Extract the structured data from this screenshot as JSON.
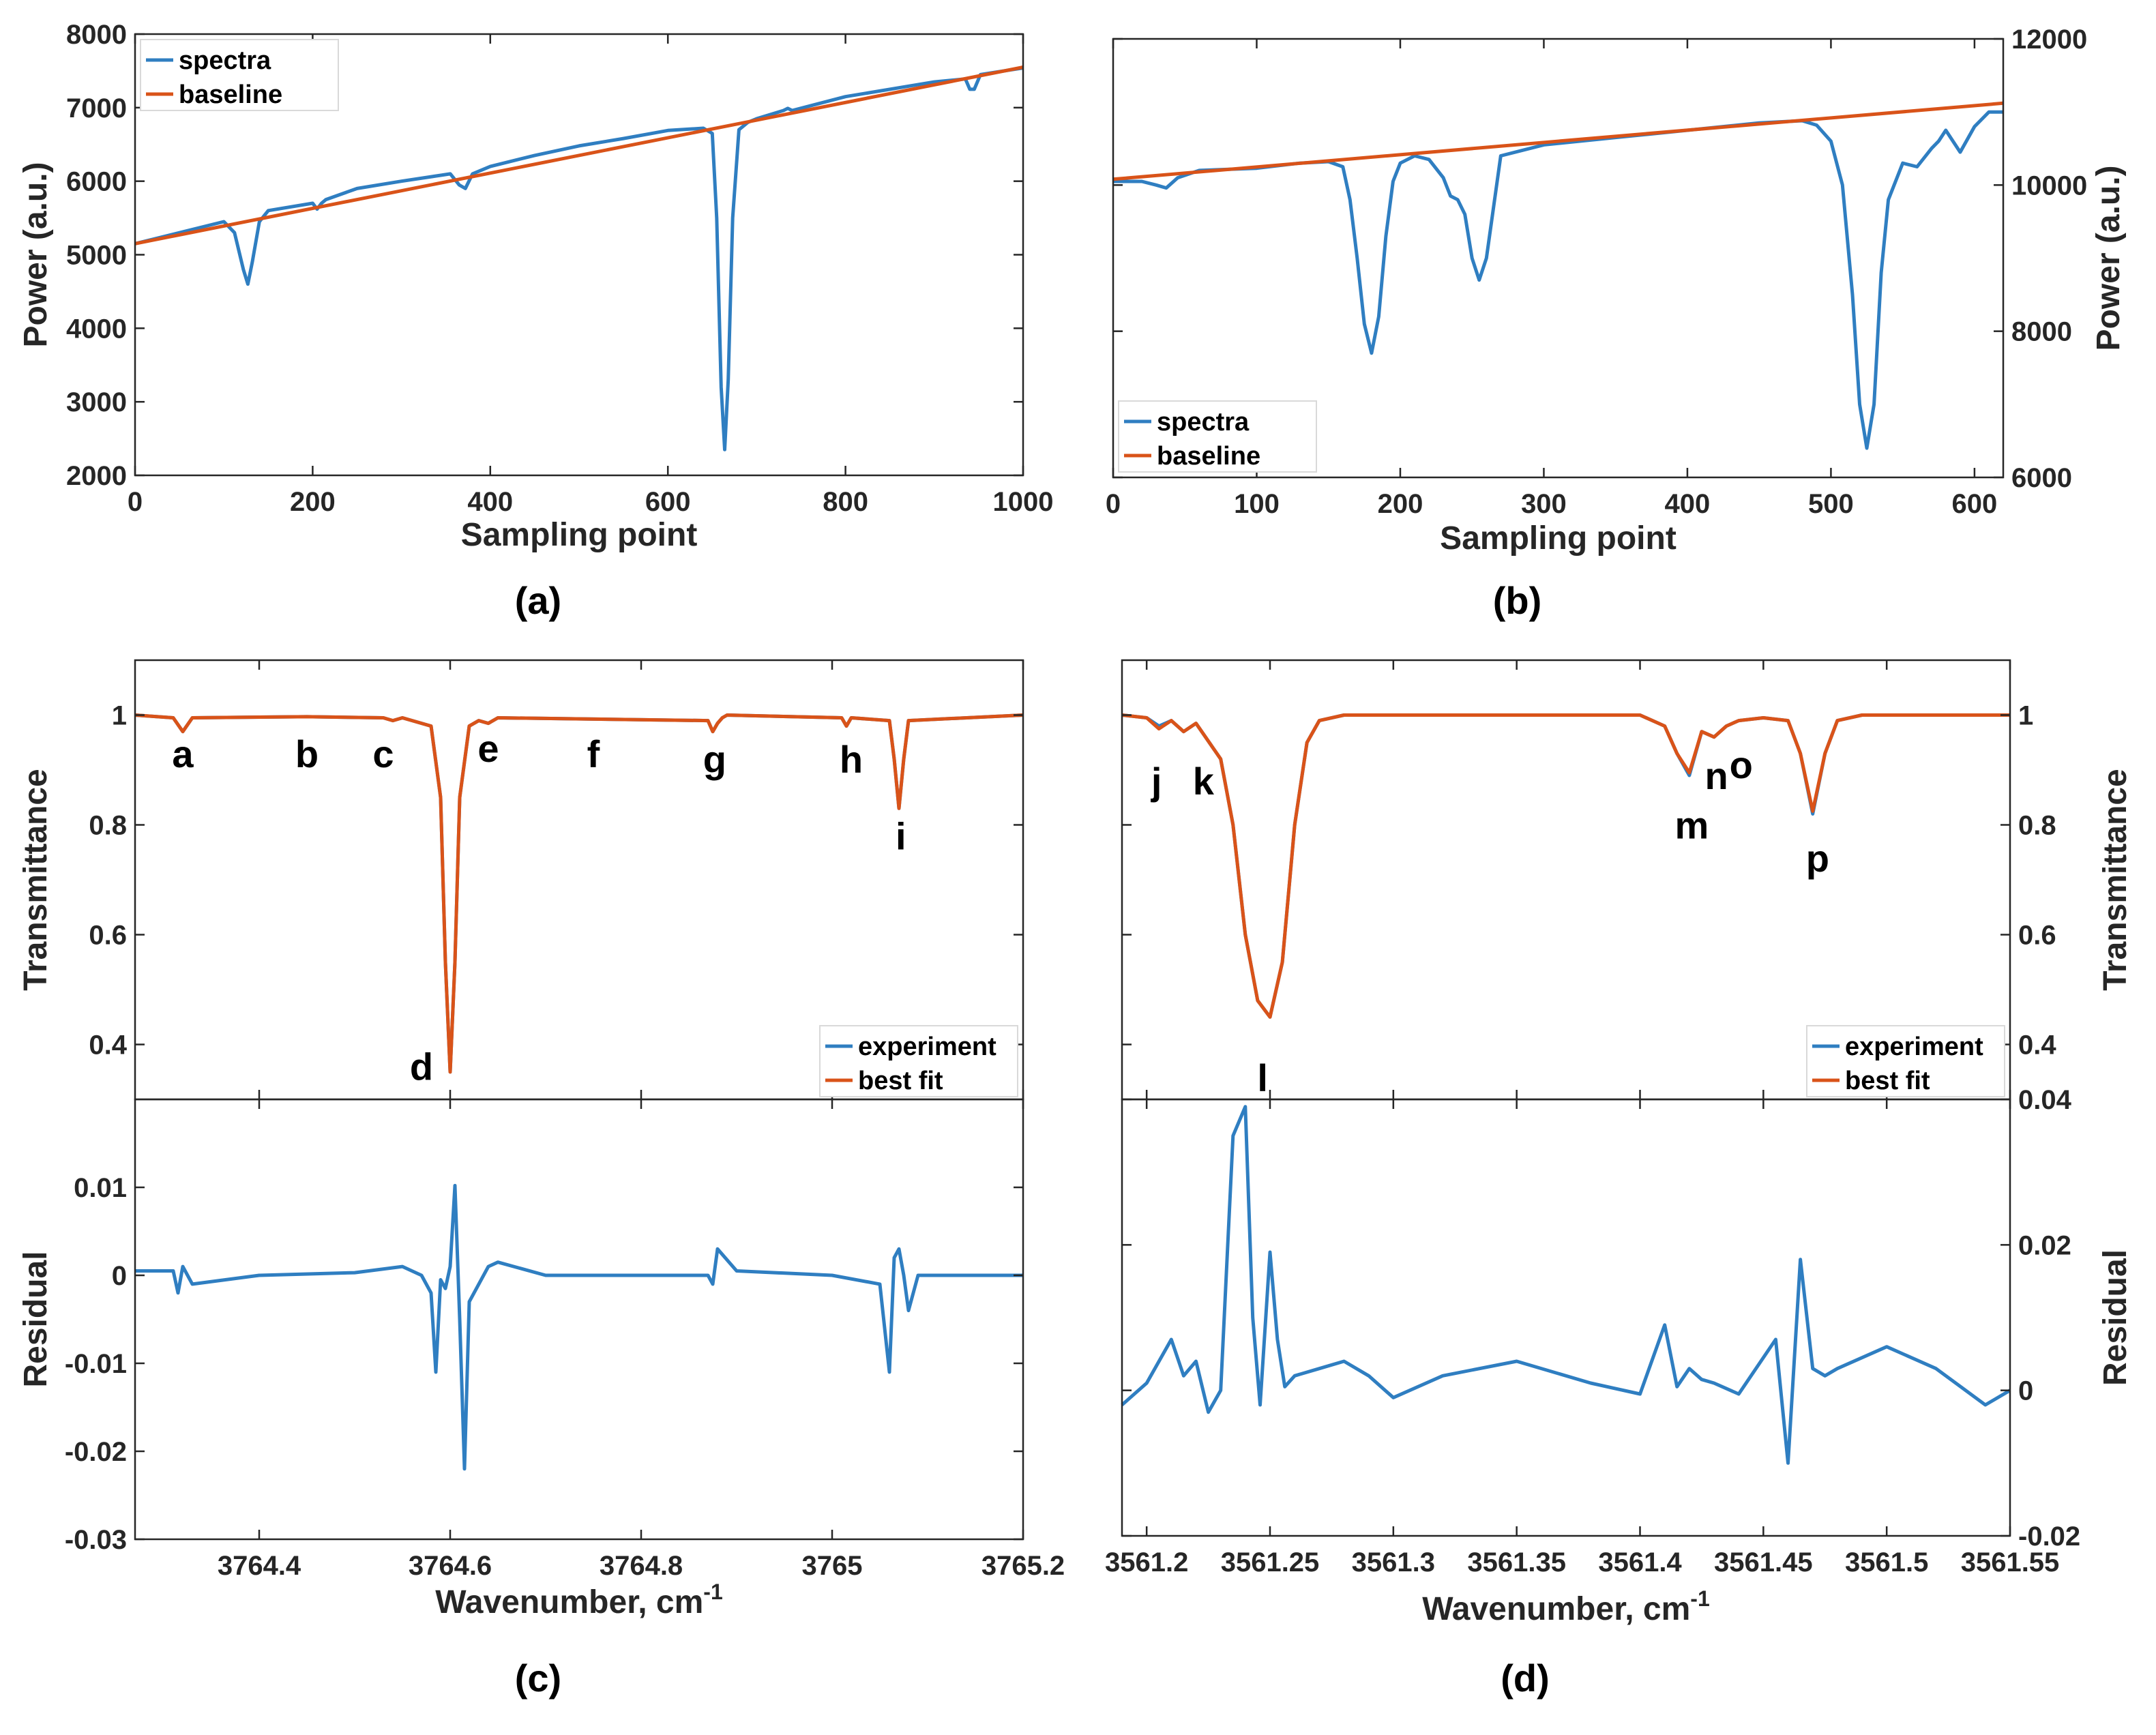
{
  "colors": {
    "blue": "#2f7ec1",
    "orange": "#d95319",
    "axis": "#262626"
  },
  "chart_data": [
    {
      "id": "a",
      "type": "line",
      "panel_label": "(a)",
      "xlabel": "Sampling point",
      "ylabel": "Power (a.u.)",
      "xlim": [
        0,
        1000
      ],
      "ylim": [
        2000,
        8000
      ],
      "xticks": [
        0,
        200,
        400,
        600,
        800,
        1000
      ],
      "yticks": [
        2000,
        3000,
        4000,
        5000,
        6000,
        7000,
        8000
      ],
      "ylabel_side": "left",
      "legend": {
        "position": "top-left",
        "entries": [
          "spectra",
          "baseline"
        ]
      },
      "series": [
        {
          "name": "spectra",
          "color": "#2f7ec1",
          "x": [
            0,
            100,
            112,
            122,
            127,
            132,
            140,
            150,
            200,
            205,
            210,
            215,
            250,
            300,
            355,
            365,
            372,
            380,
            400,
            450,
            500,
            550,
            600,
            640,
            650,
            655,
            660,
            664,
            668,
            673,
            680,
            690,
            700,
            730,
            735,
            740,
            800,
            900,
            935,
            940,
            945,
            952,
            1000
          ],
          "y": [
            5150,
            5450,
            5300,
            4800,
            4600,
            4900,
            5450,
            5600,
            5700,
            5620,
            5700,
            5750,
            5900,
            6000,
            6100,
            5950,
            5900,
            6100,
            6200,
            6350,
            6480,
            6580,
            6690,
            6720,
            6650,
            5500,
            3200,
            2350,
            3300,
            5500,
            6700,
            6800,
            6850,
            6960,
            6990,
            6960,
            7150,
            7350,
            7390,
            7250,
            7250,
            7450,
            7540
          ]
        },
        {
          "name": "baseline",
          "color": "#d95319",
          "x": [
            0,
            1000
          ],
          "y": [
            5150,
            7550
          ]
        }
      ]
    },
    {
      "id": "b",
      "type": "line",
      "panel_label": "(b)",
      "xlabel": "Sampling point",
      "ylabel": "Power (a.u.)",
      "xlim": [
        0,
        620
      ],
      "ylim": [
        6000,
        12000
      ],
      "xticks": [
        0,
        100,
        200,
        300,
        400,
        500,
        600
      ],
      "yticks": [
        6000,
        8000,
        10000,
        12000
      ],
      "ylabel_side": "right",
      "legend": {
        "position": "bottom-left",
        "entries": [
          "spectra",
          "baseline"
        ]
      },
      "series": [
        {
          "name": "spectra",
          "color": "#2f7ec1",
          "x": [
            0,
            20,
            30,
            37,
            45,
            60,
            100,
            130,
            150,
            160,
            165,
            170,
            175,
            180,
            185,
            190,
            195,
            200,
            210,
            220,
            230,
            235,
            240,
            245,
            250,
            255,
            260,
            265,
            270,
            300,
            350,
            400,
            450,
            480,
            490,
            500,
            508,
            515,
            520,
            525,
            530,
            535,
            540,
            550,
            560,
            570,
            575,
            580,
            590,
            600,
            610,
            620
          ],
          "y": [
            10050,
            10050,
            10000,
            9960,
            10100,
            10200,
            10230,
            10300,
            10320,
            10250,
            9800,
            9000,
            8100,
            7700,
            8200,
            9300,
            10050,
            10300,
            10400,
            10350,
            10100,
            9850,
            9800,
            9600,
            9000,
            8700,
            9000,
            9700,
            10400,
            10550,
            10650,
            10750,
            10850,
            10880,
            10820,
            10600,
            10000,
            8500,
            7000,
            6400,
            7000,
            8800,
            9800,
            10300,
            10250,
            10500,
            10600,
            10750,
            10450,
            10800,
            11000,
            11000
          ]
        },
        {
          "name": "baseline",
          "color": "#d95319",
          "x": [
            0,
            620
          ],
          "y": [
            10080,
            11120
          ]
        }
      ]
    },
    {
      "id": "c",
      "type": "line",
      "panel_label": "(c)",
      "xlabel": "Wavenumber, cm",
      "xlabel_superscript": "-1",
      "xlim": [
        3764.27,
        3765.2
      ],
      "xticks": [
        3764.4,
        3764.6,
        3764.8,
        3765,
        3765.2
      ],
      "xticklabels": [
        "3764.4",
        "3764.6",
        "3764.8",
        "3765",
        "3765.2"
      ],
      "top": {
        "ylabel": "Transmittance",
        "ylabel_side": "left",
        "ylim": [
          0.3,
          1.1
        ],
        "yticks": [
          0.4,
          0.6,
          0.8,
          1.0
        ],
        "yticklabels": [
          "0.4",
          "0.6",
          "0.8",
          "1"
        ],
        "legend": {
          "position": "bottom-right",
          "entries": [
            "experiment",
            "best fit"
          ]
        },
        "series": [
          {
            "name": "experiment",
            "color": "#2f7ec1",
            "x": [
              3764.27,
              3764.31,
              3764.32,
              3764.33,
              3764.45,
              3764.53,
              3764.54,
              3764.55,
              3764.58,
              3764.59,
              3764.595,
              3764.6,
              3764.605,
              3764.61,
              3764.62,
              3764.63,
              3764.64,
              3764.65,
              3764.87,
              3764.875,
              3764.88,
              3764.885,
              3764.89,
              3765.01,
              3765.015,
              3765.02,
              3765.06,
              3765.065,
              3765.07,
              3765.075,
              3765.08,
              3765.2
            ],
            "y": [
              1.0,
              0.995,
              0.97,
              0.995,
              0.997,
              0.995,
              0.99,
              0.995,
              0.98,
              0.85,
              0.55,
              0.35,
              0.55,
              0.85,
              0.98,
              0.99,
              0.985,
              0.995,
              0.99,
              0.97,
              0.985,
              0.995,
              1.0,
              0.995,
              0.98,
              0.995,
              0.99,
              0.92,
              0.83,
              0.92,
              0.99,
              1.0
            ]
          },
          {
            "name": "best fit",
            "color": "#d95319",
            "x": [
              3764.27,
              3764.31,
              3764.32,
              3764.33,
              3764.45,
              3764.53,
              3764.54,
              3764.55,
              3764.58,
              3764.59,
              3764.595,
              3764.6,
              3764.605,
              3764.61,
              3764.62,
              3764.63,
              3764.64,
              3764.65,
              3764.87,
              3764.875,
              3764.88,
              3764.885,
              3764.89,
              3765.01,
              3765.015,
              3765.02,
              3765.06,
              3765.065,
              3765.07,
              3765.075,
              3765.08,
              3765.2
            ],
            "y": [
              1.0,
              0.995,
              0.97,
              0.995,
              0.997,
              0.995,
              0.99,
              0.995,
              0.98,
              0.85,
              0.55,
              0.35,
              0.55,
              0.85,
              0.98,
              0.99,
              0.985,
              0.995,
              0.99,
              0.97,
              0.985,
              0.995,
              1.0,
              0.995,
              0.98,
              0.995,
              0.99,
              0.92,
              0.83,
              0.92,
              0.99,
              1.0
            ]
          }
        ],
        "annotations": [
          {
            "text": "a",
            "x": 3764.32,
            "y": 0.93
          },
          {
            "text": "b",
            "x": 3764.45,
            "y": 0.93
          },
          {
            "text": "c",
            "x": 3764.53,
            "y": 0.93
          },
          {
            "text": "d",
            "x": 3764.57,
            "y": 0.36
          },
          {
            "text": "e",
            "x": 3764.64,
            "y": 0.94
          },
          {
            "text": "f",
            "x": 3764.75,
            "y": 0.93
          },
          {
            "text": "g",
            "x": 3764.877,
            "y": 0.92
          },
          {
            "text": "h",
            "x": 3765.02,
            "y": 0.92
          },
          {
            "text": "i",
            "x": 3765.072,
            "y": 0.78
          }
        ]
      },
      "bottom": {
        "ylabel": "Residual",
        "ylabel_side": "left",
        "ylim": [
          -0.03,
          0.02
        ],
        "yticks": [
          -0.03,
          -0.02,
          -0.01,
          0,
          0.01
        ],
        "yticklabels": [
          "-0.03",
          "-0.02",
          "-0.01",
          "0",
          "0.01"
        ],
        "series": [
          {
            "name": "residual",
            "color": "#2f7ec1",
            "x": [
              3764.27,
              3764.31,
              3764.315,
              3764.32,
              3764.33,
              3764.4,
              3764.5,
              3764.55,
              3764.57,
              3764.58,
              3764.585,
              3764.59,
              3764.595,
              3764.6,
              3764.605,
              3764.61,
              3764.615,
              3764.62,
              3764.64,
              3764.65,
              3764.7,
              3764.8,
              3764.87,
              3764.875,
              3764.88,
              3764.9,
              3765.0,
              3765.05,
              3765.06,
              3765.065,
              3765.07,
              3765.075,
              3765.08,
              3765.09,
              3765.2
            ],
            "y": [
              0.0005,
              0.0005,
              -0.002,
              0.001,
              -0.001,
              0,
              0.0003,
              0.001,
              0,
              -0.002,
              -0.011,
              -0.0005,
              -0.0015,
              0.001,
              0.0102,
              -0.005,
              -0.022,
              -0.003,
              0.001,
              0.0015,
              0,
              0,
              0,
              -0.001,
              0.003,
              0.0005,
              0,
              -0.001,
              -0.011,
              0.002,
              0.003,
              0,
              -0.004,
              0,
              0
            ]
          }
        ]
      }
    },
    {
      "id": "d",
      "type": "line",
      "panel_label": "(d)",
      "xlabel": "Wavenumber, cm",
      "xlabel_superscript": "-1",
      "xlim": [
        3561.19,
        3561.55
      ],
      "xticks": [
        3561.2,
        3561.25,
        3561.3,
        3561.35,
        3561.4,
        3561.45,
        3561.5,
        3561.55
      ],
      "xticklabels": [
        "3561.2",
        "3561.25",
        "3561.3",
        "3561.35",
        "3561.4",
        "3561.45",
        "3561.5",
        "3561.55"
      ],
      "top": {
        "ylabel": "Transmittance",
        "ylabel_side": "right",
        "ylim": [
          0.3,
          1.1
        ],
        "yticks": [
          0.4,
          0.6,
          0.8,
          1.0
        ],
        "yticklabels": [
          "0.4",
          "0.6",
          "0.8",
          "1"
        ],
        "legend": {
          "position": "bottom-right",
          "entries": [
            "experiment",
            "best fit"
          ]
        },
        "series": [
          {
            "name": "experiment",
            "color": "#2f7ec1",
            "x": [
              3561.19,
              3561.2,
              3561.205,
              3561.21,
              3561.215,
              3561.22,
              3561.23,
              3561.235,
              3561.24,
              3561.245,
              3561.25,
              3561.255,
              3561.26,
              3561.265,
              3561.27,
              3561.28,
              3561.4,
              3561.41,
              3561.415,
              3561.42,
              3561.425,
              3561.43,
              3561.435,
              3561.44,
              3561.45,
              3561.46,
              3561.465,
              3561.47,
              3561.475,
              3561.48,
              3561.49,
              3561.55
            ],
            "y": [
              1.0,
              0.995,
              0.98,
              0.99,
              0.97,
              0.985,
              0.92,
              0.8,
              0.6,
              0.48,
              0.45,
              0.55,
              0.8,
              0.95,
              0.99,
              1.0,
              1.0,
              0.98,
              0.93,
              0.89,
              0.97,
              0.96,
              0.98,
              0.99,
              0.995,
              0.99,
              0.93,
              0.82,
              0.93,
              0.99,
              1.0,
              1.0
            ]
          },
          {
            "name": "best fit",
            "color": "#d95319",
            "x": [
              3561.19,
              3561.2,
              3561.205,
              3561.21,
              3561.215,
              3561.22,
              3561.23,
              3561.235,
              3561.24,
              3561.245,
              3561.25,
              3561.255,
              3561.26,
              3561.265,
              3561.27,
              3561.28,
              3561.4,
              3561.41,
              3561.415,
              3561.42,
              3561.425,
              3561.43,
              3561.435,
              3561.44,
              3561.45,
              3561.46,
              3561.465,
              3561.47,
              3561.475,
              3561.48,
              3561.49,
              3561.55
            ],
            "y": [
              1.0,
              0.995,
              0.975,
              0.99,
              0.97,
              0.985,
              0.92,
              0.8,
              0.6,
              0.48,
              0.45,
              0.55,
              0.8,
              0.95,
              0.99,
              1.0,
              1.0,
              0.98,
              0.93,
              0.895,
              0.97,
              0.96,
              0.98,
              0.99,
              0.995,
              0.99,
              0.93,
              0.825,
              0.93,
              0.99,
              1.0,
              1.0
            ]
          }
        ],
        "annotations": [
          {
            "text": "j",
            "x": 3561.204,
            "y": 0.88
          },
          {
            "text": "k",
            "x": 3561.223,
            "y": 0.88
          },
          {
            "text": "l",
            "x": 3561.247,
            "y": 0.34
          },
          {
            "text": "m",
            "x": 3561.421,
            "y": 0.8
          },
          {
            "text": "n",
            "x": 3561.431,
            "y": 0.89
          },
          {
            "text": "o",
            "x": 3561.441,
            "y": 0.91
          },
          {
            "text": "p",
            "x": 3561.472,
            "y": 0.74
          }
        ]
      },
      "bottom": {
        "ylabel": "Residual",
        "ylabel_side": "right",
        "ylim": [
          -0.02,
          0.04
        ],
        "yticks": [
          -0.02,
          0,
          0.02,
          0.04
        ],
        "yticklabels": [
          "-0.02",
          "0",
          "0.02",
          "0.04"
        ],
        "series": [
          {
            "name": "residual",
            "color": "#2f7ec1",
            "x": [
              3561.19,
              3561.2,
              3561.21,
              3561.215,
              3561.22,
              3561.225,
              3561.23,
              3561.235,
              3561.24,
              3561.243,
              3561.246,
              3561.25,
              3561.253,
              3561.256,
              3561.26,
              3561.27,
              3561.28,
              3561.29,
              3561.3,
              3561.32,
              3561.35,
              3561.38,
              3561.4,
              3561.41,
              3561.415,
              3561.42,
              3561.425,
              3561.43,
              3561.44,
              3561.455,
              3561.46,
              3561.465,
              3561.47,
              3561.475,
              3561.48,
              3561.5,
              3561.52,
              3561.54,
              3561.55
            ],
            "y": [
              -0.002,
              0.001,
              0.007,
              0.002,
              0.004,
              -0.003,
              0,
              0.035,
              0.039,
              0.01,
              -0.002,
              0.019,
              0.007,
              0.0005,
              0.002,
              0.003,
              0.004,
              0.002,
              -0.001,
              0.002,
              0.004,
              0.001,
              -0.0005,
              0.009,
              0.0005,
              0.003,
              0.0015,
              0.001,
              -0.0005,
              0.007,
              -0.01,
              0.018,
              0.003,
              0.002,
              0.003,
              0.006,
              0.003,
              -0.002,
              0
            ]
          }
        ]
      }
    }
  ]
}
